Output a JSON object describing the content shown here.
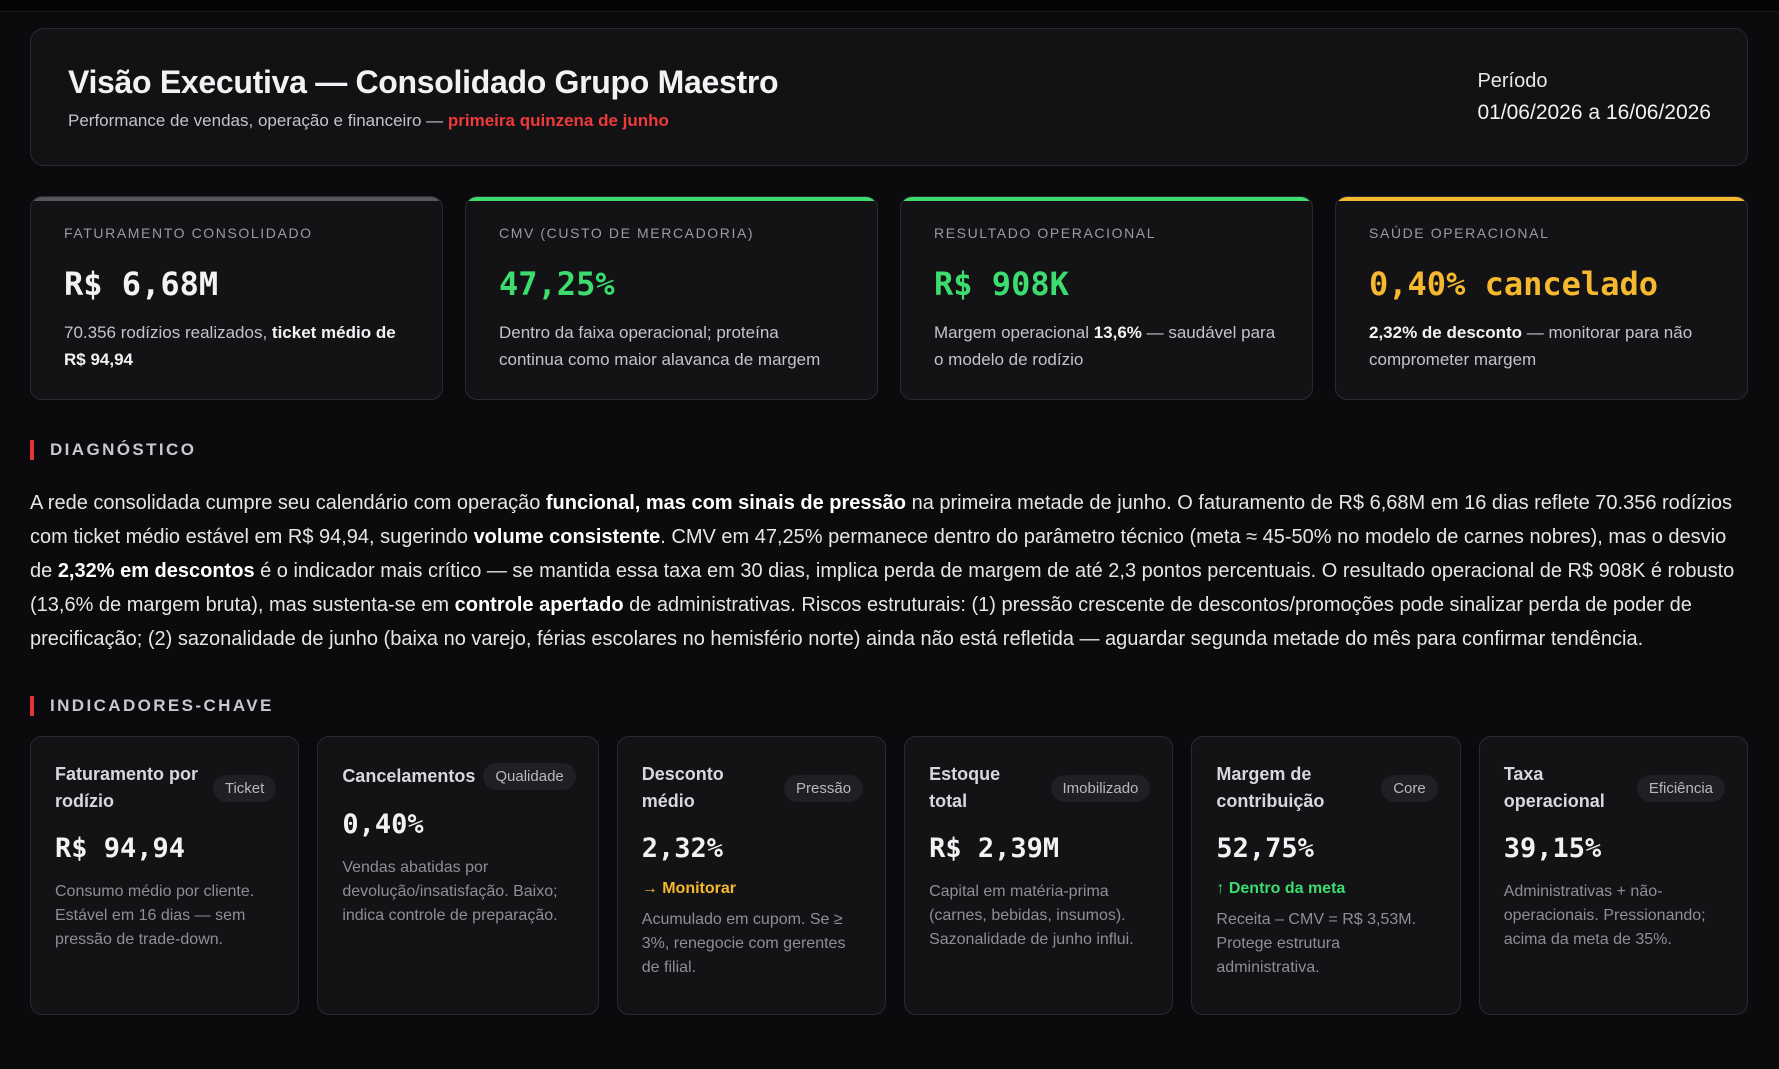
{
  "header": {
    "title": "Visão Executiva — Consolidado Grupo Maestro",
    "subtitle": "Performance de vendas, operação e financeiro — ",
    "subtitle_highlight": "primeira quinzena de junho",
    "period_label": "Período",
    "period_value": "01/06/2026 a 16/06/2026"
  },
  "kpis": [
    {
      "label": "FATURAMENTO CONSOLIDADO",
      "value": "R$ 6,68M",
      "value_color": "#f2f2f4",
      "accent": "#55565c",
      "desc_pre": "70.356 rodízios realizados, ",
      "desc_bold": "ticket médio de R$ 94,94",
      "desc_post": ""
    },
    {
      "label": "CMV (CUSTO DE MERCADORIA)",
      "value": "47,25%",
      "value_color": "#3ddc6f",
      "accent": "#3ddc6f",
      "desc_pre": "Dentro da faixa operacional; proteína continua como maior alavanca de margem",
      "desc_bold": "",
      "desc_post": ""
    },
    {
      "label": "RESULTADO OPERACIONAL",
      "value": "R$ 908K",
      "value_color": "#3ddc6f",
      "accent": "#3ddc6f",
      "desc_pre": "Margem operacional ",
      "desc_bold": "13,6%",
      "desc_post": " — saudável para o modelo de rodízio"
    },
    {
      "label": "SAÚDE OPERACIONAL",
      "value": "0,40% cancelado",
      "value_color": "#f5b82e",
      "accent": "#f5b82e",
      "desc_pre": "",
      "desc_bold": "2,32% de desconto",
      "desc_post": " — monitorar para não comprometer margem"
    }
  ],
  "diagnostico": {
    "title": "DIAGNÓSTICO",
    "p": [
      "A rede consolidada cumpre seu calendário com operação ",
      "funcional, mas com sinais de pressão",
      " na primeira metade de junho. O faturamento de R$ 6,68M em 16 dias reflete 70.356 rodízios com ticket médio estável em R$ 94,94, sugerindo ",
      "volume consistente",
      ". CMV em 47,25% permanece dentro do parâmetro técnico (meta ≈ 45-50% no modelo de carnes nobres), mas o desvio de ",
      "2,32% em descontos",
      " é o indicador mais crítico — se mantida essa taxa em 30 dias, implica perda de margem de até 2,3 pontos percentuais. O resultado operacional de R$ 908K é robusto (13,6% de margem bruta), mas sustenta-se em ",
      "controle apertado",
      " de administrativas. Riscos estruturais: (1) pressão crescente de descontos/promoções pode sinalizar perda de poder de precificação; (2) sazonalidade de junho (baixa no varejo, férias escolares no hemisfério norte) ainda não está refletida — aguardar segunda metade do mês para confirmar tendência."
    ]
  },
  "indicadores": {
    "title": "INDICADORES-CHAVE",
    "items": [
      {
        "name": "Faturamento por rodízio",
        "tag": "Ticket",
        "value": "R$ 94,94",
        "status": "",
        "status_color": "",
        "desc": "Consumo médio por cliente. Estável em 16 dias — sem pressão de trade-down."
      },
      {
        "name": "Cancelamentos",
        "tag": "Qualidade",
        "value": "0,40%",
        "status": "",
        "status_color": "",
        "desc": "Vendas abatidas por devolução/insatisfação. Baixo; indica controle de preparação."
      },
      {
        "name": "Desconto médio",
        "tag": "Pressão",
        "value": "2,32%",
        "status": "→ Monitorar",
        "status_color": "#f5b82e",
        "desc": "Acumulado em cupom. Se ≥ 3%, renegocie com gerentes de filial."
      },
      {
        "name": "Estoque total",
        "tag": "Imobilizado",
        "value": "R$ 2,39M",
        "status": "",
        "status_color": "",
        "desc": "Capital em matéria-prima (carnes, bebidas, insumos). Sazonalidade de junho influi."
      },
      {
        "name": "Margem de contribuição",
        "tag": "Core",
        "value": "52,75%",
        "status": "↑ Dentro da meta",
        "status_color": "#3ddc6f",
        "desc": "Receita – CMV = R$ 3,53M. Protege estrutura administrativa."
      },
      {
        "name": "Taxa operacional",
        "tag": "Eficiência",
        "value": "39,15%",
        "status": "",
        "status_color": "",
        "desc": "Administrativas + não-operacionais. Pressionando; acima da meta de 35%."
      }
    ]
  }
}
